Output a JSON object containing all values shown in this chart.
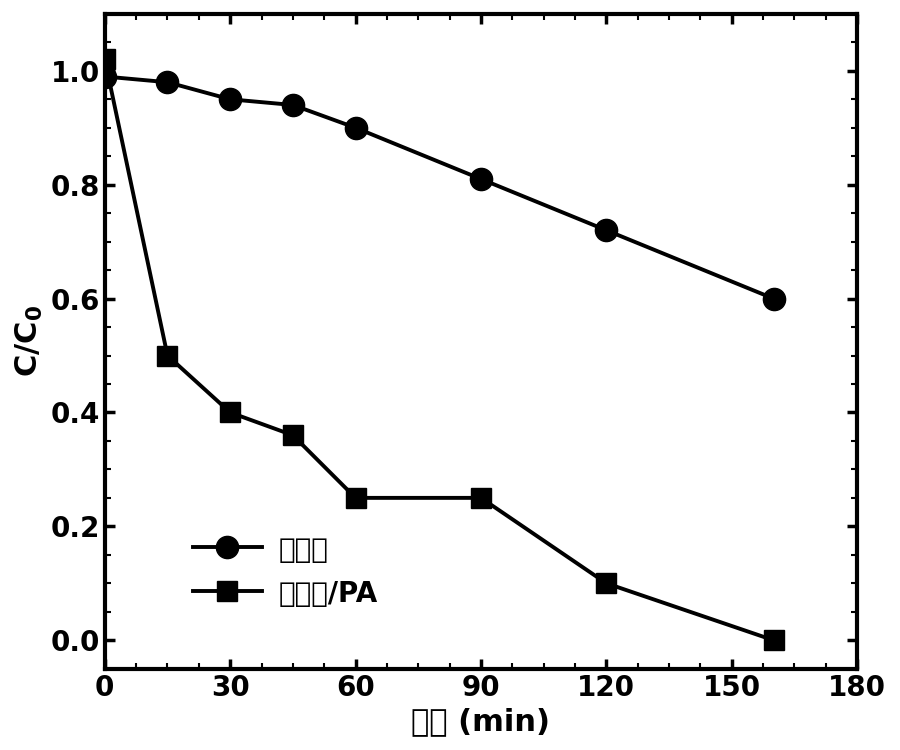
{
  "series1_label": "水热炭",
  "series2_label": "水热炭/PA",
  "series1_x": [
    0,
    15,
    30,
    45,
    60,
    90,
    120,
    160
  ],
  "series1_y": [
    0.99,
    0.98,
    0.95,
    0.94,
    0.9,
    0.81,
    0.72,
    0.6
  ],
  "series2_x": [
    0,
    15,
    30,
    45,
    60,
    90,
    120,
    160
  ],
  "series2_y": [
    1.02,
    0.5,
    0.4,
    0.36,
    0.25,
    0.25,
    0.1,
    0.0
  ],
  "xlabel": "时间 (min)",
  "ylabel": "C/C$_0$",
  "xlim": [
    0,
    180
  ],
  "ylim": [
    -0.05,
    1.1
  ],
  "xticks": [
    0,
    30,
    60,
    90,
    120,
    150,
    180
  ],
  "yticks": [
    0.0,
    0.2,
    0.4,
    0.6,
    0.8,
    1.0
  ],
  "line_color": "#000000",
  "marker_circle": "o",
  "marker_square": "s",
  "marker_size": 16,
  "linewidth": 2.8,
  "background_color": "#ffffff",
  "tick_fontsize": 20,
  "label_fontsize": 22,
  "legend_fontsize": 20,
  "spine_linewidth": 3.0,
  "figsize": [
    9.0,
    7.5
  ],
  "dpi": 100
}
